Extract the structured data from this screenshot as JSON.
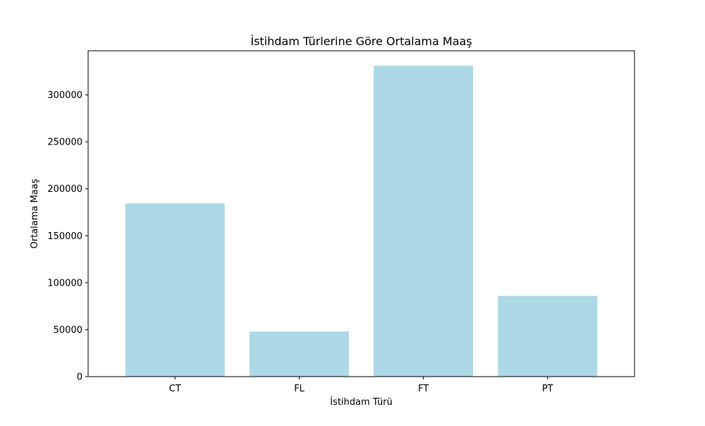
{
  "chart_data": {
    "type": "bar",
    "title": "İstihdam Türlerine Göre Ortalama Maaş",
    "xlabel": "İstihdam Türü",
    "ylabel": "Ortalama Maaş",
    "categories": [
      "CT",
      "FL",
      "FT",
      "PT"
    ],
    "values": [
      184500,
      48000,
      331000,
      86000
    ],
    "ylim": [
      0,
      347000
    ],
    "yticks": [
      0,
      50000,
      100000,
      150000,
      200000,
      250000,
      300000
    ],
    "ytick_labels": [
      "0",
      "50000",
      "100000",
      "150000",
      "200000",
      "250000",
      "300000"
    ],
    "bar_color": "#add8e6",
    "grid": false,
    "legend": "none"
  }
}
